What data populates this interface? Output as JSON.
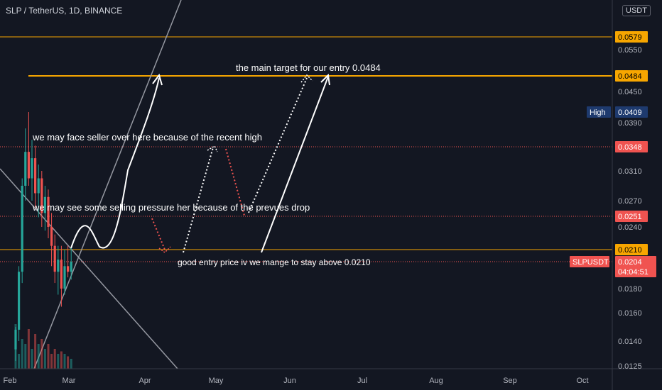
{
  "header": {
    "title": "SLP / TetherUS, 1D, BINANCE",
    "currency": "USDT"
  },
  "colors": {
    "background": "#131722",
    "bull": "#26a69a",
    "bear": "#ef5350",
    "level": "#f7a600",
    "high_badge": "#1e3a6e",
    "price_badge": "#f05350"
  },
  "chart_data": {
    "type": "candlestick",
    "title": "SLP / TetherUS, 1D, BINANCE",
    "x_ticks": [
      "Feb",
      "Mar",
      "Apr",
      "May",
      "Jun",
      "Jul",
      "Aug",
      "Sep",
      "Oct"
    ],
    "y_ticks": [
      "0.0550",
      "0.0450",
      "0.0390",
      "0.0310",
      "0.0270",
      "0.0240",
      "0.0180",
      "0.0160",
      "0.0140",
      "0.0125"
    ],
    "y_tick_values": [
      0.055,
      0.045,
      0.039,
      0.031,
      0.027,
      0.024,
      0.018,
      0.016,
      0.014,
      0.0125
    ],
    "candles": [
      {
        "o": 0.0135,
        "h": 0.015,
        "l": 0.0128,
        "c": 0.0148
      },
      {
        "o": 0.0148,
        "h": 0.02,
        "l": 0.014,
        "c": 0.0195
      },
      {
        "o": 0.0195,
        "h": 0.03,
        "l": 0.0185,
        "c": 0.029
      },
      {
        "o": 0.029,
        "h": 0.038,
        "l": 0.027,
        "c": 0.034
      },
      {
        "o": 0.034,
        "h": 0.0409,
        "l": 0.029,
        "c": 0.03
      },
      {
        "o": 0.03,
        "h": 0.036,
        "l": 0.027,
        "c": 0.033
      },
      {
        "o": 0.033,
        "h": 0.035,
        "l": 0.026,
        "c": 0.028
      },
      {
        "o": 0.028,
        "h": 0.032,
        "l": 0.025,
        "c": 0.03
      },
      {
        "o": 0.03,
        "h": 0.031,
        "l": 0.024,
        "c": 0.0255
      },
      {
        "o": 0.0255,
        "h": 0.029,
        "l": 0.0235,
        "c": 0.0275
      },
      {
        "o": 0.0275,
        "h": 0.0285,
        "l": 0.0225,
        "c": 0.024
      },
      {
        "o": 0.024,
        "h": 0.0255,
        "l": 0.02,
        "c": 0.0215
      },
      {
        "o": 0.0215,
        "h": 0.023,
        "l": 0.0185,
        "c": 0.0195
      },
      {
        "o": 0.0195,
        "h": 0.0215,
        "l": 0.0175,
        "c": 0.0205
      },
      {
        "o": 0.0205,
        "h": 0.0215,
        "l": 0.0165,
        "c": 0.018
      },
      {
        "o": 0.018,
        "h": 0.021,
        "l": 0.0175,
        "c": 0.02
      },
      {
        "o": 0.02,
        "h": 0.0215,
        "l": 0.019,
        "c": 0.0195
      },
      {
        "o": 0.0195,
        "h": 0.0212,
        "l": 0.0188,
        "c": 0.0204
      }
    ],
    "volumes": [
      0.9,
      0.3,
      0.6,
      0.5,
      0.8,
      0.4,
      0.7,
      0.5,
      0.6,
      0.4,
      0.5,
      0.3,
      0.4,
      0.3,
      0.35,
      0.3,
      0.25,
      0.2
    ],
    "levels": [
      {
        "label": "0.0579",
        "value": 0.0579,
        "type": "resistance"
      },
      {
        "label": "0.0484",
        "value": 0.0484,
        "type": "target"
      },
      {
        "label": "0.0210",
        "value": 0.021,
        "type": "support"
      }
    ],
    "dotted_levels": [
      {
        "label": "0.0348",
        "value": 0.0348
      },
      {
        "label": "0.0251",
        "value": 0.0251
      },
      {
        "label": "0.0204",
        "value": 0.0204
      }
    ],
    "high": {
      "label": "High",
      "value_label": "0.0409",
      "value": 0.0409
    },
    "last_price": {
      "symbol": "SLPUSDT",
      "value_label": "0.0204",
      "countdown": "04:04:51",
      "value": 0.0204
    },
    "annotations": {
      "target": "the main target for our entry 0.0484",
      "seller": "we may face seller over here because of the recent high",
      "selling_pressure": "we may see some selling pressure her because of the prevues drop",
      "entry": "good entry price iv we mange to stay above 0.0210"
    }
  }
}
